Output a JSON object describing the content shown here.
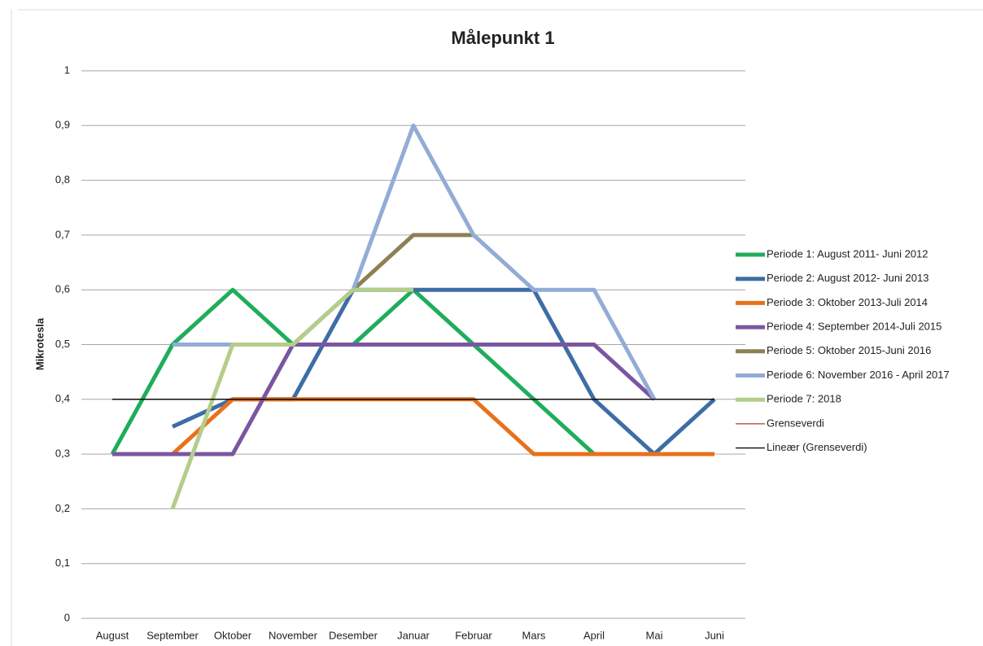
{
  "chart_data": {
    "type": "line",
    "title": "Målepunkt 1",
    "y_label": "Mikrotesla",
    "categories": [
      "August",
      "September",
      "Oktober",
      "November",
      "Desember",
      "Januar",
      "Februar",
      "Mars",
      "April",
      "Mai",
      "Juni"
    ],
    "ylim": [
      0,
      1
    ],
    "yticks": [
      0,
      {
        "value": 0.1,
        "label": "0,1"
      },
      {
        "value": 0.2,
        "label": "0,2"
      },
      {
        "value": 0.3,
        "label": "0,3"
      },
      {
        "value": 0.4,
        "label": "0,4"
      },
      {
        "value": 0.5,
        "label": "0,5"
      },
      {
        "value": 0.6,
        "label": "0,6"
      },
      {
        "value": 0.7,
        "label": "0,7"
      },
      {
        "value": 0.8,
        "label": "0,8"
      },
      {
        "value": 0.9,
        "label": "0,9"
      },
      1
    ],
    "grid": true,
    "legend": "right",
    "series": [
      {
        "name": "Periode 1: August 2011- Juni 2012",
        "color": "#1fad5b",
        "values": [
          0.3,
          0.5,
          0.6,
          0.5,
          0.5,
          0.6,
          0.5,
          0.4,
          0.3,
          null,
          null
        ]
      },
      {
        "name": "Periode 2: August 2012- Juni 2013",
        "color": "#3e6da6",
        "values": [
          null,
          0.35,
          0.4,
          0.4,
          0.6,
          0.6,
          0.6,
          0.6,
          0.4,
          0.3,
          0.4
        ]
      },
      {
        "name": "Periode 3: Oktober 2013-Juli 2014",
        "color": "#e8711c",
        "values": [
          null,
          0.3,
          0.4,
          0.4,
          0.4,
          0.4,
          0.4,
          0.3,
          0.3,
          0.3,
          0.3
        ]
      },
      {
        "name": "Periode 4: September 2014-Juli 2015",
        "color": "#7b56a0",
        "values": [
          0.3,
          0.3,
          0.3,
          0.5,
          0.5,
          0.5,
          0.5,
          0.5,
          0.5,
          0.4,
          null
        ]
      },
      {
        "name": "Periode 5: Oktober 2015-Juni 2016",
        "color": "#8c8055",
        "values": [
          null,
          null,
          null,
          0.5,
          0.6,
          0.7,
          0.7,
          null,
          null,
          null,
          null
        ]
      },
      {
        "name": "Periode 6: November 2016 - April 2017",
        "color": "#93acd6",
        "values": [
          null,
          0.5,
          0.5,
          0.5,
          0.6,
          0.9,
          0.7,
          0.6,
          0.6,
          0.4,
          null
        ]
      },
      {
        "name": "Periode 7: 2018",
        "color": "#b4cd8a",
        "values": [
          null,
          0.2,
          0.5,
          0.5,
          0.6,
          0.6,
          null,
          null,
          null,
          null,
          null
        ]
      },
      {
        "name": "Grenseverdi",
        "color": "#b03a3a",
        "values": [
          0.4,
          0.4,
          0.4,
          0.4,
          0.4,
          0.4,
          0.4,
          0.4,
          0.4,
          0.4,
          0.4
        ]
      },
      {
        "name": "Lineær (Grenseverdi)",
        "color": "#000000",
        "values": [
          0.4,
          0.4,
          0.4,
          0.4,
          0.4,
          0.4,
          0.4,
          0.4,
          0.4,
          0.4,
          0.4
        ]
      }
    ]
  }
}
